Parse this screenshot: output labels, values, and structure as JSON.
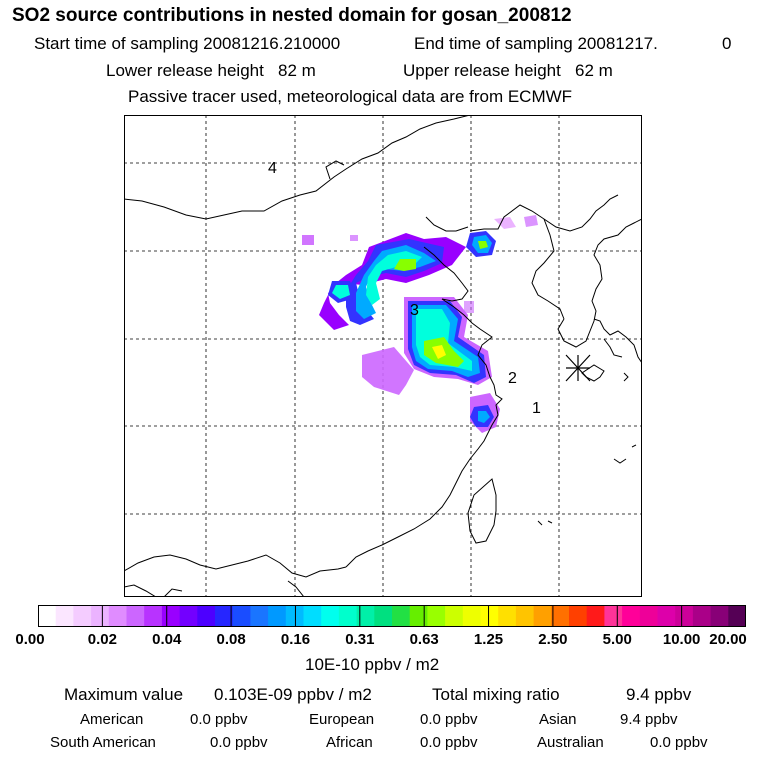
{
  "header": {
    "title": "SO2 source contributions in nested domain for gosan_200812",
    "start_label": "Start time of sampling 20081216.210000",
    "end_label": "End time of sampling 20081217.",
    "end_suffix": "0",
    "lower_height": "Lower release height   82 m",
    "upper_height": "Upper release height   62 m",
    "tracer_note": "Passive tracer used, meteorological data are from ECMWF"
  },
  "map": {
    "region_labels": [
      "4",
      "3",
      "2",
      "1"
    ],
    "receptor_marker": "asterisk-marker",
    "plume_colors": [
      "#cc66ff",
      "#9900ff",
      "#3333ff",
      "#00aaff",
      "#00ffdd",
      "#00ee99",
      "#88ff00",
      "#ffff00"
    ]
  },
  "colorbar": {
    "colors": [
      "#ffffff",
      "#fbe6ff",
      "#f4ccff",
      "#ebb3ff",
      "#e08cff",
      "#cc66ff",
      "#b833ff",
      "#9900ff",
      "#7300ff",
      "#4d00ff",
      "#2626ff",
      "#1a4dff",
      "#1a75ff",
      "#0099ff",
      "#00bbff",
      "#00ddff",
      "#00ffee",
      "#00ffcc",
      "#00f0a8",
      "#00e080",
      "#22e044",
      "#66ee00",
      "#99ff00",
      "#ccff00",
      "#eeff00",
      "#ffff00",
      "#ffe000",
      "#ffc400",
      "#ffa000",
      "#ff7000",
      "#ff4000",
      "#ff1a1a",
      "#ff3399",
      "#ff0099",
      "#ee0099",
      "#dd00aa",
      "#cc0099",
      "#aa0088",
      "#880077",
      "#550055"
    ],
    "tick_labels": [
      "0.00",
      "0.02",
      "0.04",
      "0.08",
      "0.16",
      "0.31",
      "0.63",
      "1.25",
      "2.50",
      "5.00",
      "10.00",
      "20.00"
    ],
    "units": "10E-10 ppbv / m2"
  },
  "summary": {
    "max_label": "Maximum value",
    "max_value": "0.103E-09 ppbv / m2",
    "total_label": "Total mixing ratio",
    "total_value": "9.4 ppbv"
  },
  "regions": [
    {
      "name": "American",
      "value": "0.0 ppbv"
    },
    {
      "name": "European",
      "value": "0.0 ppbv"
    },
    {
      "name": "Asian",
      "value": "9.4 ppbv"
    },
    {
      "name": "South American",
      "value": "0.0 ppbv"
    },
    {
      "name": "African",
      "value": "0.0 ppbv"
    },
    {
      "name": "Australian",
      "value": "0.0 ppbv"
    }
  ]
}
